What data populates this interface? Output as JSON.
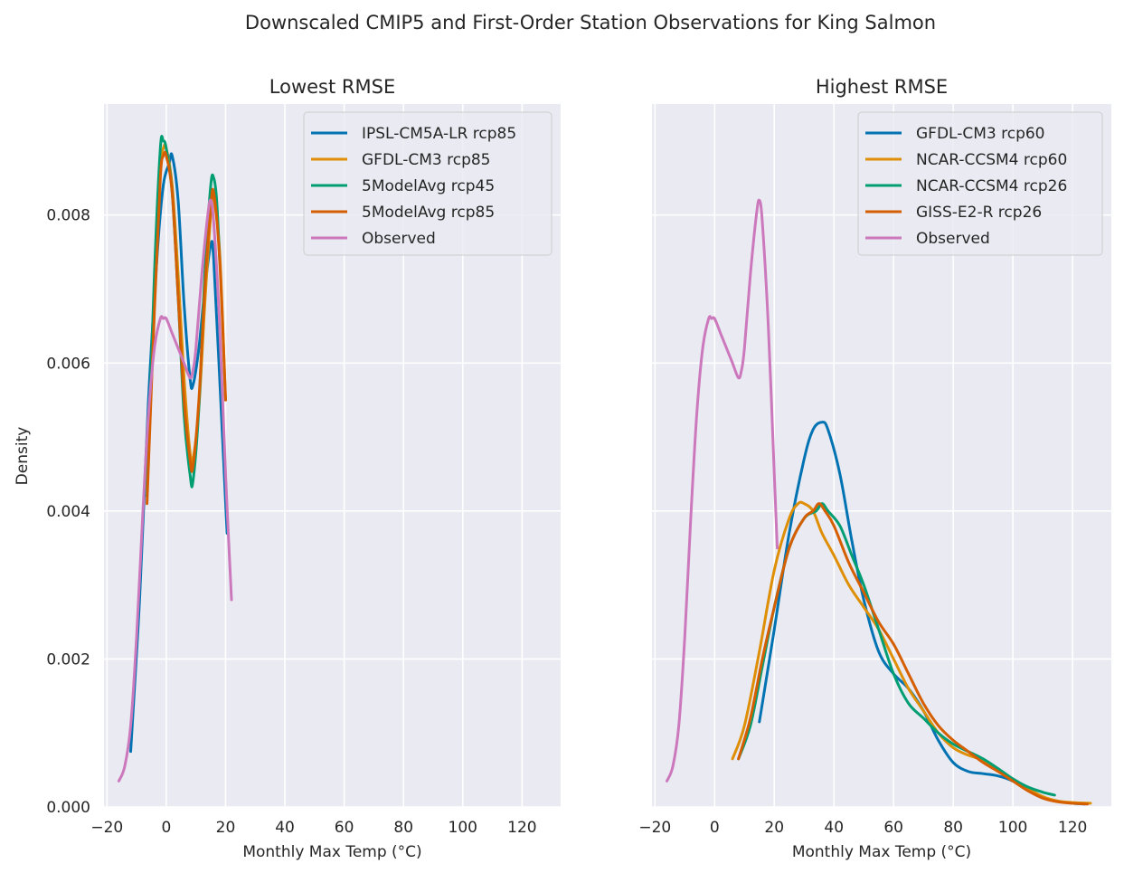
{
  "figure": {
    "suptitle": "Downscaled CMIP5 and First-Order Station Observations for King Salmon",
    "ylabel": "Density"
  },
  "colors": {
    "axes_bg": "#EAEAF2",
    "grid": "#FFFFFF",
    "text": "#262626",
    "blue": "#0173B2",
    "orange": "#DE8F05",
    "green": "#029E73",
    "vermillion": "#D55E00",
    "pink": "#CC78BC"
  },
  "chart_data": [
    {
      "type": "line",
      "title": "Lowest RMSE",
      "xlabel": "Monthly Max Temp (°C)",
      "ylabel": "Density",
      "xlim": [
        -21,
        133
      ],
      "ylim": [
        0,
        0.0095
      ],
      "xticks": [
        "−20",
        "0",
        "20",
        "40",
        "60",
        "80",
        "100",
        "120"
      ],
      "xtick_values": [
        -20,
        0,
        20,
        40,
        60,
        80,
        100,
        120
      ],
      "yticks": [
        "0.000",
        "0.002",
        "0.004",
        "0.006",
        "0.008"
      ],
      "ytick_values": [
        0,
        0.002,
        0.004,
        0.006,
        0.008
      ],
      "grid": true,
      "legend_position": "top-right",
      "series": [
        {
          "name": "IPSL-CM5A-LR rcp85",
          "color": "#0173B2",
          "x": [
            -12,
            -9,
            -6,
            -3,
            -1,
            1,
            2,
            4,
            6,
            8,
            9,
            11,
            13,
            15,
            16,
            18,
            20.5
          ],
          "y": [
            0.00075,
            0.0028,
            0.0055,
            0.0075,
            0.0084,
            0.0087,
            0.0088,
            0.0082,
            0.0068,
            0.0058,
            0.0057,
            0.0062,
            0.007,
            0.0076,
            0.0074,
            0.0058,
            0.0037
          ]
        },
        {
          "name": "GFDL-CM3 rcp85",
          "color": "#DE8F05",
          "x": [
            -6.5,
            -4,
            -2,
            -1,
            0,
            2,
            4,
            6,
            8,
            9,
            11,
            13,
            15,
            16,
            18,
            20
          ],
          "y": [
            0.0043,
            0.0068,
            0.0086,
            0.0089,
            0.0089,
            0.0084,
            0.0072,
            0.0058,
            0.0048,
            0.0047,
            0.0054,
            0.0068,
            0.008,
            0.0082,
            0.0075,
            0.0055
          ]
        },
        {
          "name": "5ModelAvg rcp45",
          "color": "#029E73",
          "x": [
            -6.5,
            -4,
            -2,
            -1,
            0,
            2,
            4,
            6,
            8,
            9,
            11,
            13,
            15,
            16,
            17,
            18
          ],
          "y": [
            0.0042,
            0.0072,
            0.0089,
            0.009,
            0.0089,
            0.0083,
            0.0069,
            0.0053,
            0.0045,
            0.0044,
            0.0054,
            0.0072,
            0.0084,
            0.0085,
            0.0082,
            0.0074
          ]
        },
        {
          "name": "5ModelAvg rcp85",
          "color": "#D55E00",
          "x": [
            -6.5,
            -4,
            -2,
            -1,
            0,
            2,
            4,
            6,
            8,
            9,
            11,
            13,
            15,
            16,
            18,
            20
          ],
          "y": [
            0.0041,
            0.0067,
            0.0085,
            0.0088,
            0.0088,
            0.0083,
            0.0069,
            0.0055,
            0.0047,
            0.0046,
            0.0055,
            0.007,
            0.0081,
            0.0083,
            0.0074,
            0.0055
          ]
        },
        {
          "name": "Observed",
          "color": "#CC78BC",
          "x": [
            -16,
            -14,
            -12,
            -10,
            -8,
            -6,
            -4,
            -2,
            -1,
            0,
            2,
            4,
            6,
            8,
            9,
            10,
            12,
            14,
            15,
            16,
            18,
            20,
            22
          ],
          "y": [
            0.00035,
            0.00055,
            0.0011,
            0.0023,
            0.0039,
            0.0053,
            0.0062,
            0.0066,
            0.0066,
            0.0066,
            0.0064,
            0.0062,
            0.006,
            0.0058,
            0.0059,
            0.0062,
            0.0072,
            0.008,
            0.0082,
            0.0079,
            0.0065,
            0.0045,
            0.0028
          ]
        }
      ]
    },
    {
      "type": "line",
      "title": "Highest RMSE",
      "xlabel": "Monthly Max Temp (°C)",
      "ylabel": "Density",
      "xlim": [
        -21,
        133
      ],
      "ylim": [
        0,
        0.0095
      ],
      "xticks": [
        "−20",
        "0",
        "20",
        "40",
        "60",
        "80",
        "100",
        "120"
      ],
      "xtick_values": [
        -20,
        0,
        20,
        40,
        60,
        80,
        100,
        120
      ],
      "yticks": [
        "0.000",
        "0.002",
        "0.004",
        "0.006",
        "0.008"
      ],
      "ytick_values": [
        0,
        0.002,
        0.004,
        0.006,
        0.008
      ],
      "grid": true,
      "legend_position": "top-right",
      "series": [
        {
          "name": "GFDL-CM3 rcp60",
          "color": "#0173B2",
          "x": [
            15,
            20,
            25,
            30,
            33,
            36,
            38,
            42,
            46,
            50,
            55,
            60,
            65,
            70,
            75,
            80,
            85,
            90,
            95,
            100,
            105,
            110,
            115,
            120,
            124
          ],
          "y": [
            0.00115,
            0.0024,
            0.0037,
            0.0047,
            0.0051,
            0.0052,
            0.0051,
            0.0045,
            0.0036,
            0.0028,
            0.0021,
            0.0018,
            0.0016,
            0.0013,
            0.0009,
            0.0006,
            0.00048,
            0.00045,
            0.00042,
            0.00035,
            0.00023,
            0.00013,
            8e-05,
            5e-05,
            4e-05
          ]
        },
        {
          "name": "NCAR-CCSM4 rcp60",
          "color": "#DE8F05",
          "x": [
            6,
            10,
            15,
            20,
            25,
            28,
            30,
            33,
            36,
            40,
            45,
            50,
            55,
            60,
            65,
            70,
            75,
            80,
            85,
            90,
            95,
            100,
            105,
            110,
            115,
            120,
            126
          ],
          "y": [
            0.00065,
            0.0011,
            0.0021,
            0.0032,
            0.0039,
            0.0041,
            0.0041,
            0.004,
            0.0037,
            0.0034,
            0.003,
            0.0027,
            0.0024,
            0.002,
            0.0016,
            0.0013,
            0.001,
            0.0008,
            0.0007,
            0.00063,
            0.0005,
            0.00037,
            0.00025,
            0.00014,
            8e-05,
            6e-05,
            5e-05
          ]
        },
        {
          "name": "NCAR-CCSM4 rcp26",
          "color": "#029E73",
          "x": [
            8,
            12,
            16,
            20,
            25,
            30,
            34,
            36,
            38,
            42,
            46,
            50,
            55,
            60,
            65,
            70,
            75,
            80,
            85,
            90,
            95,
            100,
            105,
            110,
            114
          ],
          "y": [
            0.00065,
            0.0011,
            0.0019,
            0.0027,
            0.0035,
            0.0039,
            0.004,
            0.0041,
            0.004,
            0.0038,
            0.0034,
            0.003,
            0.0024,
            0.0018,
            0.0014,
            0.0012,
            0.001,
            0.00085,
            0.00075,
            0.00065,
            0.00052,
            0.00038,
            0.00027,
            0.0002,
            0.00016
          ]
        },
        {
          "name": "GISS-E2-R rcp26",
          "color": "#D55E00",
          "x": [
            8,
            12,
            16,
            20,
            25,
            30,
            33,
            35,
            37,
            40,
            45,
            50,
            55,
            60,
            65,
            70,
            75,
            80,
            85,
            90,
            95,
            100,
            105,
            110,
            115,
            120,
            125
          ],
          "y": [
            0.00065,
            0.0012,
            0.002,
            0.0027,
            0.0035,
            0.0039,
            0.004,
            0.0041,
            0.004,
            0.0038,
            0.0033,
            0.0029,
            0.0025,
            0.0022,
            0.0018,
            0.0014,
            0.0011,
            0.0009,
            0.00075,
            0.0006,
            0.00048,
            0.00035,
            0.00022,
            0.00012,
            7e-05,
            5e-05,
            4e-05
          ]
        },
        {
          "name": "Observed",
          "color": "#CC78BC",
          "x": [
            -16,
            -14,
            -12,
            -10,
            -8,
            -6,
            -4,
            -2,
            -1,
            0,
            2,
            4,
            6,
            8,
            9,
            10,
            12,
            14,
            15,
            16,
            18,
            20,
            21
          ],
          "y": [
            0.00035,
            0.00055,
            0.0011,
            0.0023,
            0.0039,
            0.0053,
            0.0062,
            0.0066,
            0.0066,
            0.0066,
            0.0064,
            0.0062,
            0.006,
            0.0058,
            0.0059,
            0.0062,
            0.0072,
            0.008,
            0.0082,
            0.0079,
            0.0065,
            0.0045,
            0.0035
          ]
        }
      ]
    }
  ]
}
